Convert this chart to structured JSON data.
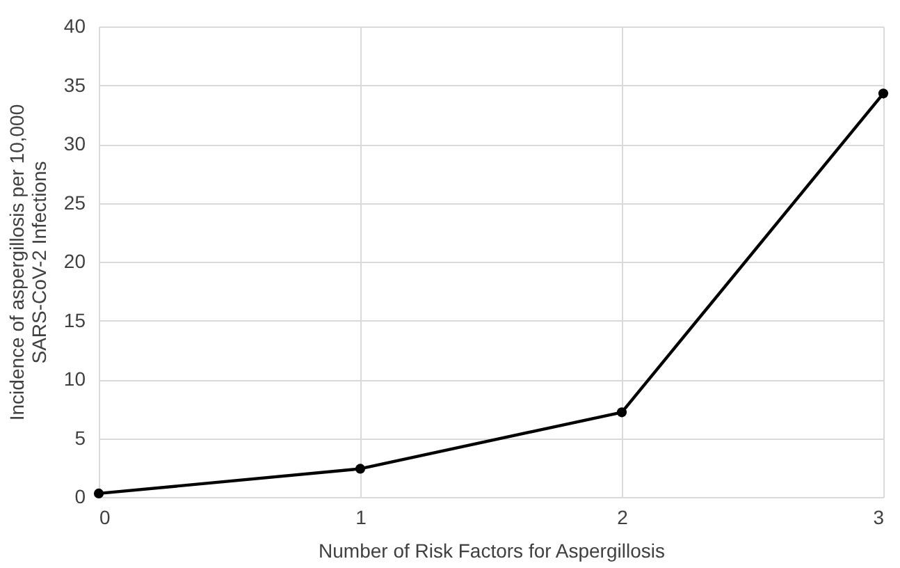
{
  "chart_data": {
    "type": "line",
    "xlabel": "Number of Risk Factors for Aspergillosis",
    "ylabel": "Incidence of aspergillosis per 10,000\nSARS-CoV-2 Infections",
    "x": [
      0,
      1,
      2,
      3
    ],
    "series": [
      {
        "color": "#000000",
        "values": [
          0.3,
          2.4,
          7.2,
          34.3
        ]
      }
    ],
    "xlim": [
      0,
      3
    ],
    "xticks": [
      0,
      1,
      2,
      3
    ],
    "ylim": [
      0,
      40
    ],
    "yticks": [
      0,
      5,
      10,
      15,
      20,
      25,
      30,
      35,
      40
    ],
    "grid": true,
    "marker": "circle",
    "line_style": "solid"
  }
}
